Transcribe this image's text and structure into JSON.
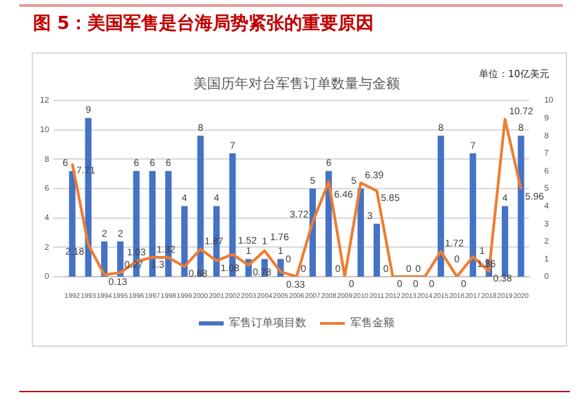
{
  "chart_data": {
    "type": "bar",
    "title": "美国历年对台军售订单数量与金额",
    "subtitle": "图 5：美国军售是台海局势紧张的重要原因",
    "annotations": [
      "单位：10亿美元"
    ],
    "categories": [
      "1992",
      "1993",
      "1994",
      "1995",
      "1996",
      "1997",
      "1998",
      "1999",
      "2000",
      "2001",
      "2002",
      "2003",
      "2004",
      "2005",
      "2006",
      "2007",
      "2008",
      "2009",
      "2010",
      "2011",
      "2012",
      "2013",
      "2014",
      "2015",
      "2016",
      "2017",
      "2018",
      "2019",
      "2020"
    ],
    "series": [
      {
        "name": "军售订单项目数",
        "axis": "y2",
        "color": "#4472c4",
        "values": [
          6,
          9,
          2,
          2,
          6,
          6,
          6,
          4,
          8,
          4,
          7,
          1,
          1,
          1,
          0,
          5,
          6,
          0,
          5,
          3,
          0,
          0,
          0,
          8,
          0,
          7,
          1,
          4,
          8
        ]
      },
      {
        "name": "军售金额",
        "type": "line",
        "color": "#ed7d31",
        "values": [
          7.71,
          2.18,
          0.13,
          0.27,
          1.03,
          1.32,
          1.3,
          0.68,
          1.87,
          1.08,
          1.52,
          0.78,
          1.76,
          0.33,
          0,
          3.72,
          6.46,
          0,
          6.39,
          5.85,
          0,
          0,
          0,
          1.72,
          0,
          1.36,
          0.38,
          10.72,
          5.96
        ]
      }
    ],
    "ylim": [
      0,
      12
    ],
    "yticks": [
      0,
      2,
      4,
      6,
      8,
      10,
      12
    ],
    "y2lim": [
      0,
      10
    ],
    "y2ticks": [
      0,
      1,
      2,
      3,
      4,
      5,
      6,
      7,
      8,
      9,
      10
    ],
    "grid": "y",
    "legend": "bottom",
    "data_labels": true,
    "marker": "none",
    "line_style": "solid"
  }
}
